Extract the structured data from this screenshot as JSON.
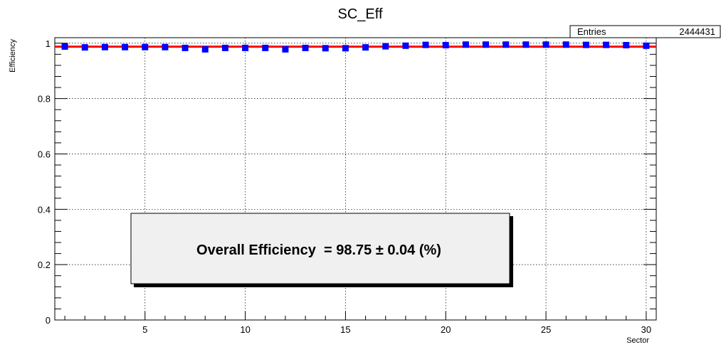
{
  "chart_data": {
    "type": "scatter",
    "title": "SC_Eff",
    "xlabel": "Sector",
    "ylabel": "Efficiency",
    "xlim": [
      0.5,
      30.5
    ],
    "ylim": [
      0,
      1.02
    ],
    "x_ticks": [
      5,
      10,
      15,
      20,
      25,
      30
    ],
    "y_ticks": [
      0,
      0.2,
      0.4,
      0.6,
      0.8,
      1
    ],
    "y_tick_labels": [
      "0",
      "0.2",
      "0.4",
      "0.6",
      "0.8",
      "1"
    ],
    "grid": true,
    "series": [
      {
        "x": [
          1,
          2,
          3,
          4,
          5,
          6,
          7,
          8,
          9,
          10,
          11,
          12,
          13,
          14,
          15,
          16,
          17,
          18,
          19,
          20,
          21,
          22,
          23,
          24,
          25,
          26,
          27,
          28,
          29,
          30
        ],
        "values": [
          0.988,
          0.985,
          0.986,
          0.986,
          0.986,
          0.986,
          0.983,
          0.978,
          0.983,
          0.983,
          0.983,
          0.978,
          0.983,
          0.982,
          0.982,
          0.985,
          0.989,
          0.991,
          0.994,
          0.993,
          0.995,
          0.995,
          0.995,
          0.995,
          0.995,
          0.995,
          0.994,
          0.994,
          0.993,
          0.991
        ],
        "color": "#0000ff"
      }
    ],
    "fit_line": {
      "y": 0.9875,
      "color": "#ff0000"
    }
  },
  "stats_box": {
    "label": "Entries",
    "value": "2444431"
  },
  "annotation": {
    "text": "Overall Efficiency  = 98.75 ± 0.04 (%)"
  }
}
